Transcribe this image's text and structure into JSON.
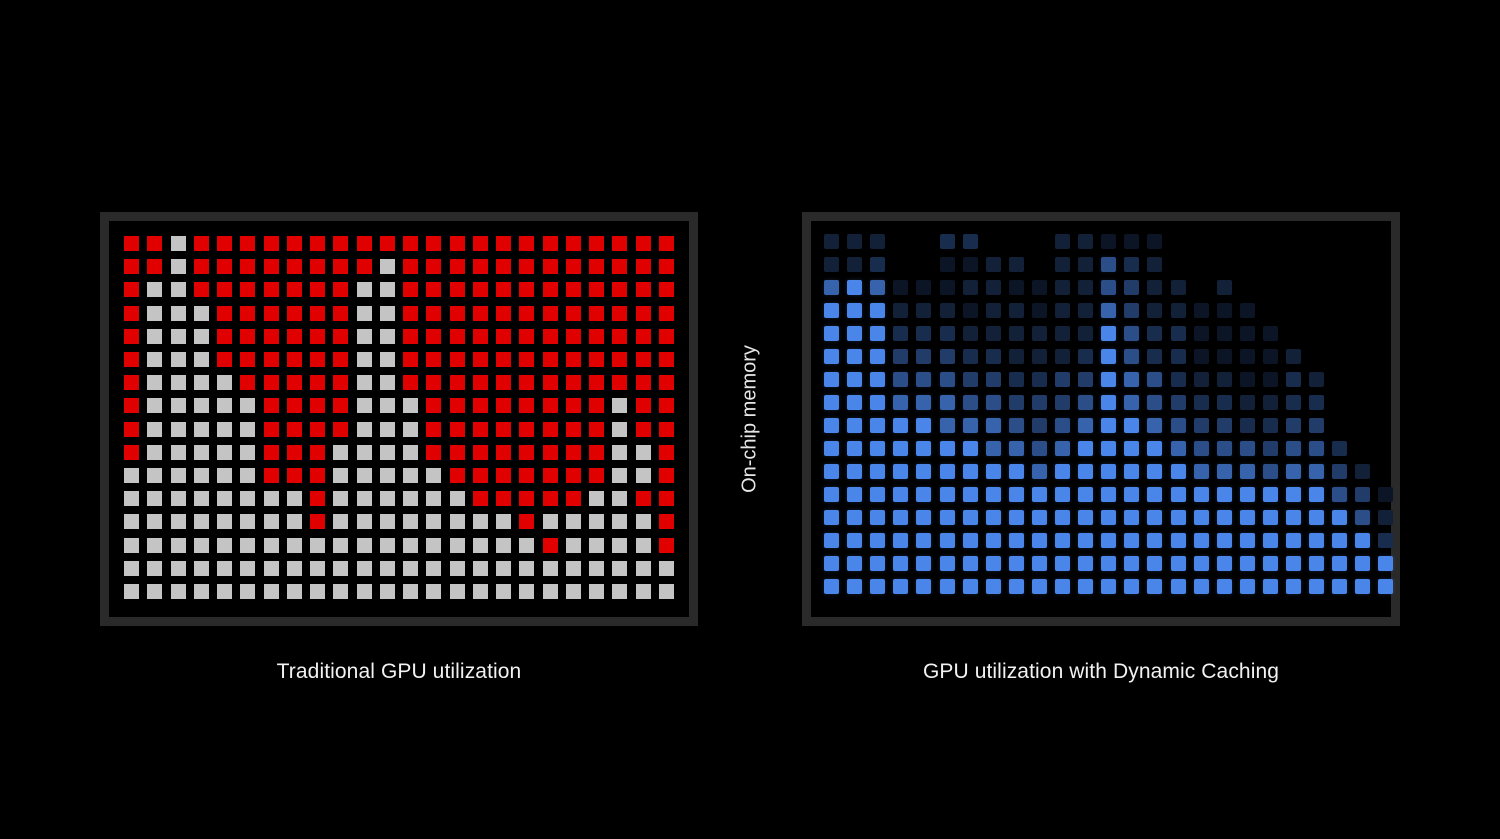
{
  "labels": {
    "axis": "On-chip memory",
    "left_caption": "Traditional GPU utilization",
    "right_caption": "GPU utilization with Dynamic Caching"
  },
  "colors": {
    "background": "#000000",
    "frame": "#2a2a2a",
    "allocated_unused": "#e00000",
    "used": "#c4c4c4",
    "dynamic": "#4a86ea"
  },
  "left_grid_rows": [
    "RRWRRRRRRRRRRRRRRRRRRRRR",
    "RRWRRRRRRRRWRRRRRRRRRRRR",
    "RWWRRRRRRRWWRRRRRRRRRRRR",
    "RWWWRRRRRRWWRRRRRRRRRRRR",
    "RWWWRRRRRRWWRRRRRRRRRRRR",
    "RWWWRRRRRRWWRRRRRRRRRRRR",
    "RWWWWRRRRRWWRRRRRRRRRRRR",
    "RWWWWWRRRRWWWRRRRRRRRWRR",
    "RWWWWWRRRRWWWRRRRRRRRWRR",
    "RWWWWWRRRWWWWRRRRRRRRWWR",
    "WWWWWWRRRWWWWWRRRRRRRWWR",
    "WWWWWWWWRWWWWWWRRRRRWWRR",
    "WWWWWWWWRWWWWWWWWRWWWWWR",
    "WWWWWWWWWWWWWWWWWWRWWWWR",
    "WWWWWWWWWWWWWWWWWWWWWWWW",
    "WWWWWWWWWWWWWWWWWWWWWWWW"
  ],
  "right_grid_levels": [
    "2220033000221110000000000",
    "2230011220225320000000000",
    "6761112211225422020000000",
    "7772221221226422111000000",
    "7773332222227533111100000",
    "7774443322237533111120000",
    "7775554433447653221132000",
    "7776665544457654332233000",
    "7777766654567765443344000",
    "7777777665677776555455300",
    "7777777776777777666566420",
    "7777777777777777777777541",
    "7777777777777777777777752",
    "7777777777777777777777773",
    "7777777777777777777777777",
    "7777777777777777777777777"
  ]
}
